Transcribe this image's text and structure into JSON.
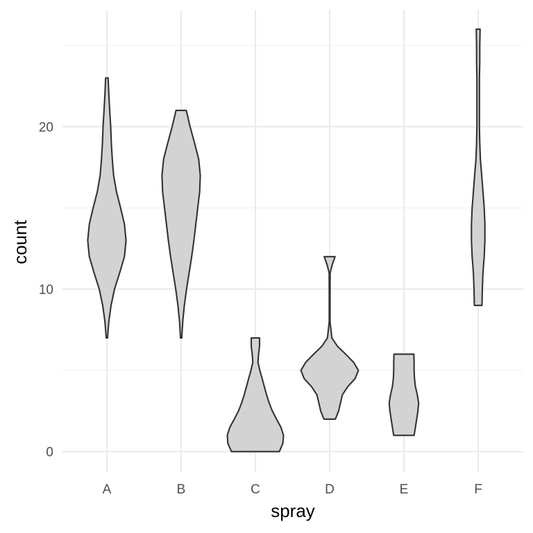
{
  "chart_data": {
    "type": "violin",
    "title": "",
    "xlabel": "spray",
    "ylabel": "count",
    "categories": [
      "A",
      "B",
      "C",
      "D",
      "E",
      "F"
    ],
    "ylim": [
      -1.25,
      27.2
    ],
    "y_ticks": [
      0,
      10,
      20
    ],
    "y_tick_labels": [
      "0",
      "10",
      "20"
    ],
    "grid": true,
    "fill_color": "#D3D3D3",
    "outline_color": "#333333",
    "violins": [
      {
        "category": "A",
        "min": 7,
        "max": 23,
        "profile": [
          [
            7,
            0.02
          ],
          [
            8,
            0.06
          ],
          [
            9,
            0.13
          ],
          [
            10,
            0.24
          ],
          [
            11,
            0.4
          ],
          [
            12,
            0.55
          ],
          [
            13,
            0.6
          ],
          [
            14,
            0.55
          ],
          [
            15,
            0.43
          ],
          [
            16,
            0.3
          ],
          [
            17,
            0.21
          ],
          [
            18,
            0.17
          ],
          [
            19,
            0.14
          ],
          [
            20,
            0.12
          ],
          [
            21,
            0.09
          ],
          [
            22,
            0.06
          ],
          [
            23,
            0.04
          ]
        ]
      },
      {
        "category": "B",
        "min": 7,
        "max": 21,
        "profile": [
          [
            7,
            0.02
          ],
          [
            8,
            0.05
          ],
          [
            9,
            0.1
          ],
          [
            10,
            0.17
          ],
          [
            11,
            0.25
          ],
          [
            12,
            0.33
          ],
          [
            13,
            0.4
          ],
          [
            14,
            0.46
          ],
          [
            15,
            0.52
          ],
          [
            16,
            0.58
          ],
          [
            17,
            0.6
          ],
          [
            18,
            0.55
          ],
          [
            19,
            0.42
          ],
          [
            20,
            0.28
          ],
          [
            21,
            0.16
          ]
        ]
      },
      {
        "category": "C",
        "min": 0,
        "max": 7,
        "profile": [
          [
            0,
            0.75
          ],
          [
            0.5,
            0.86
          ],
          [
            1,
            0.88
          ],
          [
            1.5,
            0.8
          ],
          [
            2,
            0.66
          ],
          [
            2.5,
            0.53
          ],
          [
            3,
            0.43
          ],
          [
            3.5,
            0.35
          ],
          [
            4,
            0.28
          ],
          [
            4.5,
            0.21
          ],
          [
            5,
            0.14
          ],
          [
            5.5,
            0.08
          ],
          [
            6,
            0.1
          ],
          [
            6.5,
            0.13
          ],
          [
            7,
            0.13
          ]
        ]
      },
      {
        "category": "D",
        "min": 2,
        "max": 12,
        "profile": [
          [
            2,
            0.18
          ],
          [
            2.5,
            0.28
          ],
          [
            3,
            0.34
          ],
          [
            3.5,
            0.4
          ],
          [
            4,
            0.57
          ],
          [
            4.5,
            0.8
          ],
          [
            5,
            0.9
          ],
          [
            5.5,
            0.75
          ],
          [
            6,
            0.5
          ],
          [
            6.5,
            0.24
          ],
          [
            7,
            0.07
          ],
          [
            8,
            0.012
          ],
          [
            9,
            0.012
          ],
          [
            10,
            0.012
          ],
          [
            11,
            0.015
          ],
          [
            11.5,
            0.08
          ],
          [
            12,
            0.17
          ]
        ]
      },
      {
        "category": "E",
        "min": 1,
        "max": 6,
        "profile": [
          [
            1,
            0.32
          ],
          [
            1.5,
            0.36
          ],
          [
            2,
            0.4
          ],
          [
            2.5,
            0.44
          ],
          [
            3,
            0.46
          ],
          [
            3.5,
            0.42
          ],
          [
            4,
            0.36
          ],
          [
            4.5,
            0.33
          ],
          [
            5,
            0.32
          ],
          [
            5.5,
            0.32
          ],
          [
            6,
            0.31
          ]
        ]
      },
      {
        "category": "F",
        "min": 9,
        "max": 26,
        "profile": [
          [
            9,
            0.12
          ],
          [
            10,
            0.13
          ],
          [
            11,
            0.15
          ],
          [
            12,
            0.19
          ],
          [
            13,
            0.21
          ],
          [
            14,
            0.21
          ],
          [
            15,
            0.19
          ],
          [
            16,
            0.15
          ],
          [
            17,
            0.11
          ],
          [
            18,
            0.07
          ],
          [
            19,
            0.05
          ],
          [
            20,
            0.04
          ],
          [
            21,
            0.04
          ],
          [
            22,
            0.04
          ],
          [
            23,
            0.04
          ],
          [
            24,
            0.05
          ],
          [
            25,
            0.05
          ],
          [
            26,
            0.06
          ]
        ]
      }
    ]
  }
}
